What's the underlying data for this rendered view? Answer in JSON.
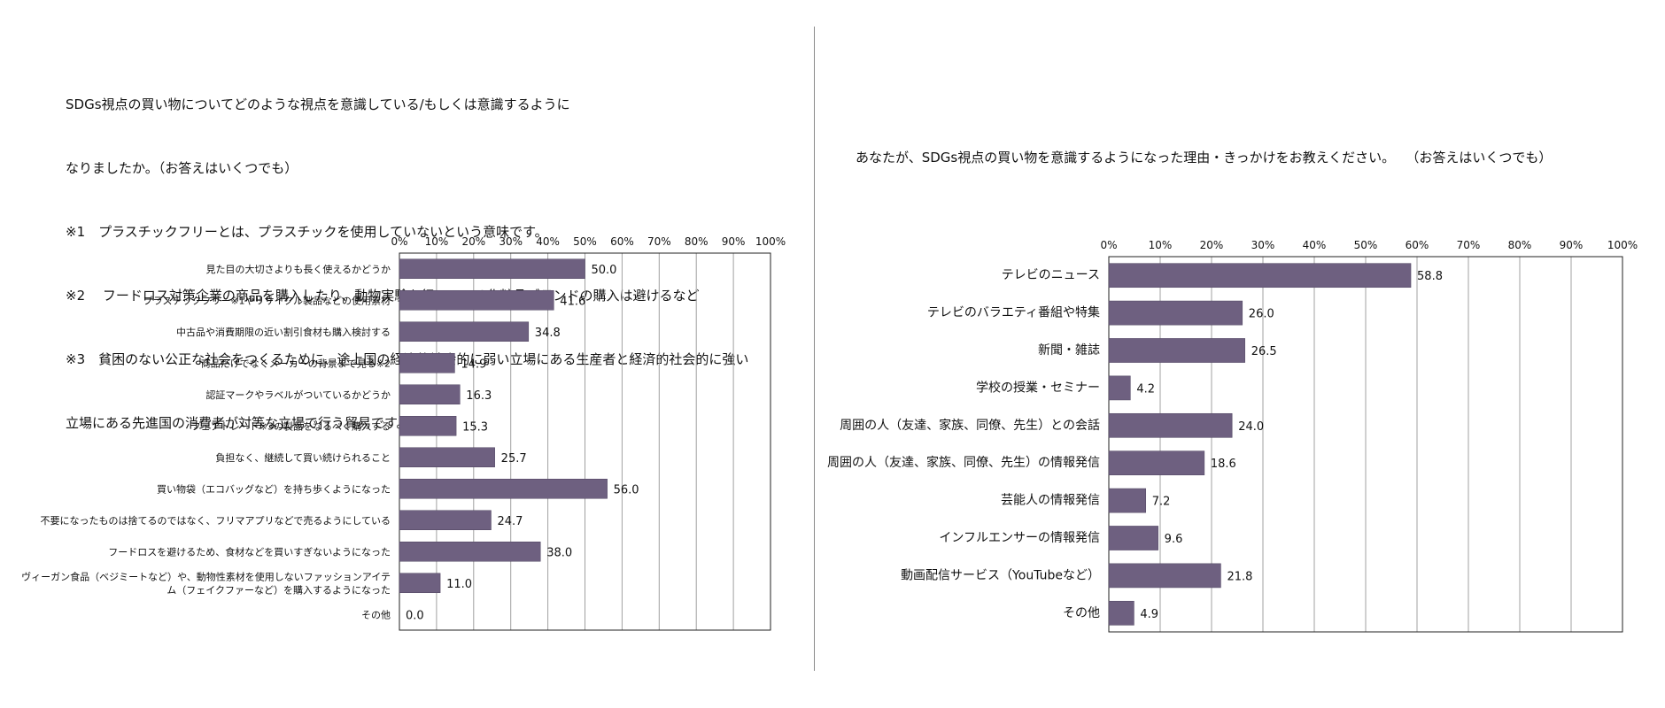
{
  "left": {
    "question_lines": [
      "SDGs視点の買い物についてどのような視点を意識している/もしくは意識するように",
      "なりましたか。（お答えはいくつでも）",
      "※1　プラスチックフリーとは、プラスチックを使用していないという意味です。",
      "※2　 フードロス対策企業の商品を購入したり、動物実験を行っている化粧品ブランドの購入は避けるなど",
      "※3　貧困のない公正な社会をつくるために、途上国の経済的社会的に弱い立場にある生産者と経済的社会的に強い",
      "立場にある先進国の消費者が対等な立場で行う貿易です。"
    ]
  },
  "right": {
    "question": "あなたが、SDGs視点の買い物を意識するようになった理由・きっかけをお教えください。　 （お答えはいくつでも）"
  },
  "colors": {
    "bar": "#6e6080",
    "bar_stroke": "#4f4460",
    "grid": "#a0a0a0",
    "axis": "#222222"
  },
  "chart_data": [
    {
      "type": "bar",
      "orientation": "horizontal",
      "x_ticks": [
        "0%",
        "10%",
        "20%",
        "30%",
        "40%",
        "50%",
        "60%",
        "70%",
        "80%",
        "90%",
        "100%"
      ],
      "xlim": [
        0,
        100
      ],
      "grid": true,
      "categories": [
        [
          "見た目の大切さよりも長く使えるかどうか"
        ],
        [
          "プラスチックフリー※1やリサイクル製品などの使用素材"
        ],
        [
          "中古品や消費期限の近い割引食材も購入検討する"
        ],
        [
          "商品だけでなくメーカーの背景まで見る※2"
        ],
        [
          "認証マークやラベルがついているかどうか"
        ],
        [
          "フェアトレード※3の製品をなるべく購入する"
        ],
        [
          "負担なく、継続して買い続けられること"
        ],
        [
          "買い物袋（エコバッグなど）を持ち歩くようになった"
        ],
        [
          "不要になったものは捨てるのではなく、フリマアプリなどで売るようにしている"
        ],
        [
          "フードロスを避けるため、食材などを買いすぎないようになった"
        ],
        [
          "ヴィーガン食品（ベジミートなど）や、動物性素材を使用しないファッションアイテ",
          "ム（フェイクファーなど）を購入するようになった"
        ],
        [
          "その他"
        ]
      ],
      "values": [
        50.0,
        41.6,
        34.8,
        14.9,
        16.3,
        15.3,
        25.7,
        56.0,
        24.7,
        38.0,
        11.0,
        0.0
      ],
      "labels": [
        "50.0",
        "41.6",
        "34.8",
        "14.9",
        "16.3",
        "15.3",
        "25.7",
        "56.0",
        "24.7",
        "38.0",
        "11.0",
        "0.0"
      ]
    },
    {
      "type": "bar",
      "orientation": "horizontal",
      "x_ticks": [
        "0%",
        "10%",
        "20%",
        "30%",
        "40%",
        "50%",
        "60%",
        "70%",
        "80%",
        "90%",
        "100%"
      ],
      "xlim": [
        0,
        100
      ],
      "grid": true,
      "categories": [
        [
          "テレビのニュース"
        ],
        [
          "テレビのバラエティ番組や特集"
        ],
        [
          "新聞・雑誌"
        ],
        [
          "学校の授業・セミナー"
        ],
        [
          "周囲の人（友達、家族、同僚、先生）との会話"
        ],
        [
          "周囲の人（友達、家族、同僚、先生）の情報発信"
        ],
        [
          "芸能人の情報発信"
        ],
        [
          "インフルエンサーの情報発信"
        ],
        [
          "動画配信サービス（YouTubeなど）"
        ],
        [
          "その他"
        ]
      ],
      "values": [
        58.8,
        26.0,
        26.5,
        4.2,
        24.0,
        18.6,
        7.2,
        9.6,
        21.8,
        4.9
      ],
      "labels": [
        "58.8",
        "26.0",
        "26.5",
        "4.2",
        "24.0",
        "18.6",
        "7.2",
        "9.6",
        "21.8",
        "4.9"
      ]
    }
  ]
}
